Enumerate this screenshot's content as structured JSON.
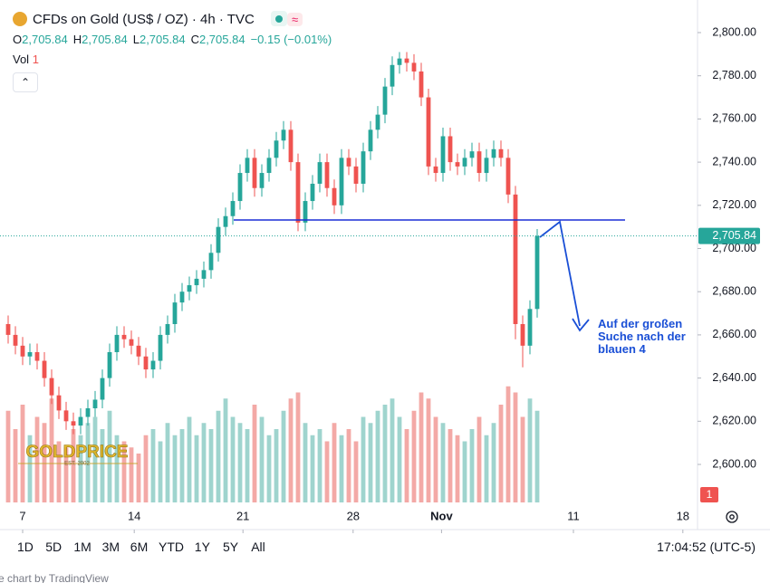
{
  "chart_data": {
    "type": "candlestick",
    "title": "CFDs on Gold (US$ / OZ) · 4h · TVC",
    "ohlc_labels": [
      "O",
      "H",
      "L",
      "C"
    ],
    "ohlc_values": [
      "2,705.84",
      "2,705.84",
      "2,705.84",
      "2,705.84"
    ],
    "change": "−0.15 (−0.01%)",
    "volume_label": "Vol",
    "volume_value": "1",
    "up_color": "#26a69a",
    "down_color": "#ef5350",
    "volume_up_color": "#9fd4ce",
    "volume_down_color": "#f3a9a6",
    "grid": false,
    "x": [
      0,
      1,
      2,
      3,
      4,
      5,
      6,
      7,
      8,
      9,
      10,
      11,
      12,
      13,
      14,
      15,
      16,
      17,
      18,
      19,
      20,
      21,
      22,
      23,
      24,
      25,
      26,
      27,
      28,
      29,
      30,
      31,
      32,
      33,
      34,
      35,
      36,
      37,
      38,
      39,
      40,
      41,
      42,
      43,
      44,
      45,
      46,
      47,
      48,
      49,
      50,
      51,
      52,
      53,
      54,
      55,
      56,
      57,
      58,
      59,
      60,
      61,
      62,
      63,
      64,
      65,
      66,
      67,
      68,
      69,
      70,
      71,
      72,
      73
    ],
    "open": [
      2665,
      2660,
      2655,
      2650,
      2652,
      2648,
      2640,
      2632,
      2625,
      2620,
      2618,
      2622,
      2626,
      2630,
      2640,
      2652,
      2660,
      2658,
      2655,
      2650,
      2644,
      2648,
      2660,
      2665,
      2675,
      2680,
      2683,
      2686,
      2690,
      2698,
      2710,
      2715,
      2722,
      2735,
      2742,
      2728,
      2735,
      2742,
      2750,
      2755,
      2740,
      2712,
      2722,
      2730,
      2740,
      2728,
      2720,
      2742,
      2738,
      2730,
      2745,
      2755,
      2762,
      2775,
      2785,
      2788,
      2786,
      2782,
      2770,
      2738,
      2735,
      2752,
      2740,
      2738,
      2742,
      2745,
      2735,
      2742,
      2746,
      2742,
      2725,
      2665,
      2655,
      2672
    ],
    "high": [
      2669,
      2664,
      2659,
      2656,
      2656,
      2652,
      2644,
      2636,
      2629,
      2624,
      2626,
      2630,
      2634,
      2644,
      2656,
      2664,
      2664,
      2662,
      2659,
      2654,
      2652,
      2664,
      2669,
      2679,
      2684,
      2687,
      2690,
      2694,
      2702,
      2714,
      2719,
      2726,
      2739,
      2746,
      2746,
      2739,
      2746,
      2754,
      2759,
      2759,
      2744,
      2726,
      2734,
      2744,
      2744,
      2732,
      2746,
      2746,
      2742,
      2749,
      2759,
      2766,
      2779,
      2789,
      2791,
      2791,
      2790,
      2786,
      2774,
      2742,
      2756,
      2756,
      2744,
      2746,
      2749,
      2749,
      2746,
      2750,
      2750,
      2746,
      2729,
      2669,
      2676,
      2709
    ],
    "low": [
      2656,
      2651,
      2646,
      2646,
      2644,
      2636,
      2628,
      2621,
      2616,
      2614,
      2614,
      2618,
      2622,
      2626,
      2636,
      2648,
      2654,
      2651,
      2646,
      2640,
      2640,
      2644,
      2656,
      2661,
      2671,
      2676,
      2679,
      2682,
      2686,
      2694,
      2706,
      2711,
      2718,
      2731,
      2724,
      2724,
      2731,
      2738,
      2746,
      2736,
      2708,
      2708,
      2718,
      2726,
      2724,
      2716,
      2716,
      2734,
      2726,
      2726,
      2741,
      2751,
      2758,
      2771,
      2781,
      2782,
      2778,
      2766,
      2734,
      2731,
      2731,
      2736,
      2734,
      2734,
      2738,
      2731,
      2731,
      2738,
      2738,
      2721,
      2658,
      2645,
      2651,
      2668
    ],
    "close": [
      2660,
      2655,
      2650,
      2652,
      2648,
      2640,
      2632,
      2625,
      2620,
      2618,
      2622,
      2626,
      2630,
      2640,
      2652,
      2660,
      2658,
      2655,
      2650,
      2644,
      2648,
      2660,
      2665,
      2675,
      2680,
      2683,
      2686,
      2690,
      2698,
      2710,
      2715,
      2722,
      2735,
      2742,
      2728,
      2735,
      2742,
      2750,
      2755,
      2740,
      2712,
      2722,
      2730,
      2740,
      2728,
      2720,
      2742,
      2738,
      2730,
      2745,
      2755,
      2762,
      2775,
      2785,
      2788,
      2786,
      2782,
      2770,
      2738,
      2735,
      2752,
      2740,
      2738,
      2742,
      2745,
      2735,
      2742,
      2746,
      2742,
      2725,
      2665,
      2655,
      2672,
      2705.84
    ],
    "volume": [
      75,
      60,
      80,
      55,
      70,
      65,
      85,
      50,
      45,
      60,
      55,
      65,
      70,
      60,
      75,
      55,
      50,
      45,
      40,
      55,
      60,
      50,
      65,
      55,
      60,
      70,
      55,
      65,
      60,
      75,
      85,
      70,
      65,
      60,
      80,
      70,
      55,
      60,
      75,
      85,
      90,
      65,
      55,
      60,
      50,
      65,
      55,
      60,
      50,
      70,
      65,
      75,
      80,
      85,
      70,
      60,
      75,
      90,
      85,
      70,
      65,
      60,
      55,
      50,
      60,
      70,
      55,
      65,
      80,
      95,
      90,
      70,
      85,
      75
    ],
    "vlim": [
      0,
      100
    ],
    "xlim": [
      -0.5,
      95.125
    ],
    "xticks": [
      {
        "value": 2,
        "label": "7"
      },
      {
        "value": 17.4,
        "label": "14"
      },
      {
        "value": 32.4,
        "label": "21"
      },
      {
        "value": 47.6,
        "label": "28"
      },
      {
        "value": 59.8,
        "label": "Nov"
      },
      {
        "value": 78,
        "label": "11"
      },
      {
        "value": 93.1,
        "label": "18"
      }
    ],
    "ylim": [
      2582.4,
      2813
    ],
    "yticks": [
      {
        "value": 2600,
        "label": "2,600.00"
      },
      {
        "value": 2620,
        "label": "2,620.00"
      },
      {
        "value": 2640,
        "label": "2,640.00"
      },
      {
        "value": 2660,
        "label": "2,660.00"
      },
      {
        "value": 2680,
        "label": "2,680.00"
      },
      {
        "value": 2700,
        "label": "2,700.00"
      },
      {
        "value": 2720,
        "label": "2,720.00"
      },
      {
        "value": 2740,
        "label": "2,740.00"
      },
      {
        "value": 2760,
        "label": "2,760.00"
      },
      {
        "value": 2780,
        "label": "2,780.00"
      },
      {
        "value": 2800,
        "label": "2,800.00"
      }
    ],
    "last_price": {
      "value": 2705.84,
      "label": "2,705.84"
    },
    "hline": {
      "value": 2713.2,
      "color": "#1a2fd6"
    },
    "annotation": [
      "Auf der großen",
      "Suche nach der",
      "blauen 4"
    ],
    "badge": "1",
    "watermark": [
      "GOLDPRICE",
      "EST. 2002"
    ],
    "timeframes": [
      "1D",
      "5D",
      "1M",
      "3M",
      "6M",
      "YTD",
      "1Y",
      "5Y",
      "All"
    ],
    "clock": "17:04:52 (UTC-5)",
    "footer": "e chart by TradingView"
  }
}
